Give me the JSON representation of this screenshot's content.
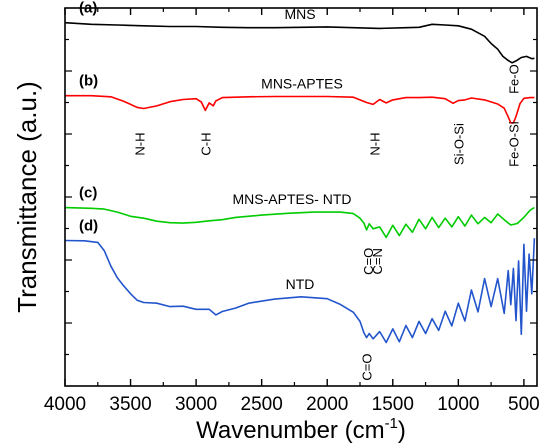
{
  "chart_data": {
    "type": "line",
    "xlabel": "Wavenumber (cm",
    "xlabel_sup": "-1",
    "xlabel_close": ")",
    "ylabel": "Transmittance (a.u.)",
    "xlim": [
      4000,
      400
    ],
    "x_reversed": true,
    "x_ticks": [
      4000,
      3500,
      3000,
      2500,
      2000,
      1500,
      1000,
      500
    ],
    "ylim": [
      0,
      1
    ],
    "y_tick_labels": false,
    "grid": false,
    "legend": "none",
    "series": [
      {
        "panel": "(a)",
        "name": "MNS",
        "color": "#000000",
        "x": [
          4000,
          3800,
          3600,
          3400,
          3200,
          3000,
          2800,
          2600,
          2400,
          2200,
          2000,
          1800,
          1600,
          1400,
          1300,
          1200,
          1100,
          1000,
          900,
          800,
          750,
          700,
          660,
          620,
          590,
          560,
          520,
          480,
          440,
          420
        ],
        "y": [
          0.961,
          0.957,
          0.955,
          0.953,
          0.951,
          0.951,
          0.949,
          0.948,
          0.948,
          0.949,
          0.95,
          0.948,
          0.946,
          0.948,
          0.949,
          0.957,
          0.955,
          0.953,
          0.944,
          0.925,
          0.906,
          0.891,
          0.872,
          0.861,
          0.855,
          0.86,
          0.869,
          0.872,
          0.866,
          0.867
        ]
      },
      {
        "panel": "(b)",
        "name": "MNS-APTES",
        "color": "#ff0000",
        "x": [
          4000,
          3800,
          3650,
          3550,
          3450,
          3400,
          3300,
          3200,
          3100,
          3000,
          2960,
          2930,
          2900,
          2870,
          2850,
          2800,
          2600,
          2400,
          2200,
          2000,
          1800,
          1700,
          1650,
          1600,
          1550,
          1500,
          1400,
          1300,
          1200,
          1100,
          1040,
          1000,
          950,
          900,
          800,
          700,
          650,
          620,
          600,
          580,
          560,
          530,
          500,
          450,
          420
        ],
        "y": [
          0.768,
          0.768,
          0.765,
          0.753,
          0.737,
          0.734,
          0.741,
          0.752,
          0.758,
          0.76,
          0.751,
          0.729,
          0.749,
          0.741,
          0.754,
          0.763,
          0.765,
          0.766,
          0.766,
          0.766,
          0.764,
          0.75,
          0.745,
          0.758,
          0.749,
          0.757,
          0.763,
          0.763,
          0.764,
          0.76,
          0.748,
          0.755,
          0.757,
          0.762,
          0.757,
          0.746,
          0.735,
          0.712,
          0.696,
          0.696,
          0.713,
          0.747,
          0.761,
          0.763,
          0.763
        ]
      },
      {
        "panel": "(c)",
        "name": "MNS-APTES- NTD",
        "color": "#00cc00",
        "x": [
          4000,
          3800,
          3700,
          3600,
          3500,
          3400,
          3300,
          3200,
          3100,
          3000,
          2900,
          2800,
          2700,
          2500,
          2300,
          2100,
          1900,
          1800,
          1750,
          1720,
          1700,
          1680,
          1650,
          1600,
          1550,
          1500,
          1450,
          1400,
          1350,
          1300,
          1250,
          1200,
          1150,
          1100,
          1050,
          1000,
          950,
          900,
          850,
          800,
          750,
          700,
          650,
          600,
          550,
          500,
          450,
          420
        ],
        "y": [
          0.472,
          0.47,
          0.468,
          0.46,
          0.449,
          0.444,
          0.436,
          0.432,
          0.431,
          0.433,
          0.437,
          0.44,
          0.446,
          0.452,
          0.457,
          0.46,
          0.46,
          0.456,
          0.444,
          0.431,
          0.413,
          0.429,
          0.416,
          0.421,
          0.393,
          0.425,
          0.398,
          0.428,
          0.407,
          0.441,
          0.416,
          0.446,
          0.419,
          0.444,
          0.421,
          0.448,
          0.423,
          0.452,
          0.429,
          0.446,
          0.432,
          0.455,
          0.44,
          0.426,
          0.43,
          0.446,
          0.466,
          0.472
        ]
      },
      {
        "panel": "(d)",
        "name": "NTD",
        "color": "#2255cc",
        "x": [
          4000,
          3850,
          3750,
          3700,
          3650,
          3600,
          3550,
          3500,
          3450,
          3400,
          3300,
          3200,
          3100,
          3000,
          2900,
          2850,
          2800,
          2700,
          2600,
          2400,
          2200,
          2000,
          1900,
          1800,
          1750,
          1720,
          1700,
          1680,
          1650,
          1600,
          1550,
          1500,
          1450,
          1400,
          1350,
          1300,
          1250,
          1200,
          1150,
          1100,
          1050,
          1000,
          950,
          900,
          850,
          800,
          750,
          700,
          650,
          620,
          600,
          580,
          560,
          540,
          520,
          500,
          480,
          460,
          440,
          420
        ],
        "y": [
          0.385,
          0.384,
          0.38,
          0.358,
          0.317,
          0.286,
          0.264,
          0.244,
          0.227,
          0.221,
          0.219,
          0.21,
          0.211,
          0.203,
          0.203,
          0.188,
          0.197,
          0.206,
          0.219,
          0.23,
          0.236,
          0.231,
          0.216,
          0.195,
          0.171,
          0.141,
          0.128,
          0.139,
          0.125,
          0.144,
          0.115,
          0.151,
          0.117,
          0.16,
          0.128,
          0.171,
          0.139,
          0.178,
          0.147,
          0.198,
          0.159,
          0.219,
          0.172,
          0.254,
          0.196,
          0.284,
          0.21,
          0.284,
          0.192,
          0.305,
          0.215,
          0.311,
          0.173,
          0.331,
          0.137,
          0.375,
          0.198,
          0.349,
          0.244,
          0.391
        ]
      }
    ],
    "annotations": [
      {
        "text": "N-H",
        "x": 3430,
        "y": 0.64,
        "series": "(b)"
      },
      {
        "text": "C-H",
        "x": 2930,
        "y": 0.64,
        "series": "(b)"
      },
      {
        "text": "N-H",
        "x": 1640,
        "y": 0.64,
        "series": "(b)"
      },
      {
        "text": "Si-O-Si",
        "x": 1000,
        "y": 0.64,
        "series": "(b)"
      },
      {
        "text": "Fe-O-Si",
        "x": 580,
        "y": 0.64,
        "series": "(b)"
      },
      {
        "text": "Fe-O",
        "x": 580,
        "y": 0.812,
        "series": "(a)"
      },
      {
        "text": "C=O",
        "x": 1690,
        "y": 0.33,
        "series": "(c)"
      },
      {
        "text": "C=N",
        "x": 1620,
        "y": 0.33,
        "series": "(c)"
      },
      {
        "text": "C=O",
        "x": 1700,
        "y": 0.05,
        "series": "(d)"
      }
    ]
  }
}
